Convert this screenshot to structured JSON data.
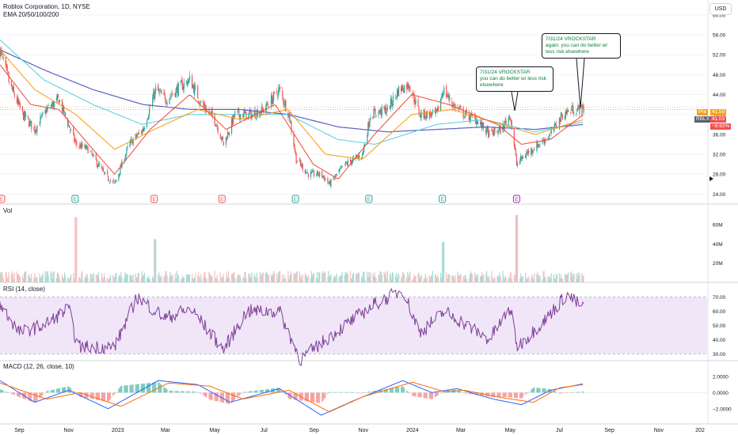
{
  "header": {
    "symbol_line": "Roblox Corporation, 1D, NYSE",
    "indicator_line": "EMA 20/50/100/200",
    "currency": "USD"
  },
  "panes": {
    "volume_label": "Vol",
    "rsi_label": "RSI (14, close)",
    "macd_label": "MACD (12, 26, close, 10)"
  },
  "notes": [
    {
      "lines": [
        "7/31/24 VROCKSTAR",
        "you can do better w/ less risk",
        "elsewhere"
      ]
    },
    {
      "lines": [
        "7/31/24 VROCKSTAR",
        "again: you can do better w/",
        "less risk elsewhere"
      ]
    }
  ],
  "price_tags": {
    "pre_label": "Pre",
    "pre_value": "41.50",
    "ticker": "RBLX",
    "last_value": "41.03",
    "change": "−8.62%"
  },
  "colors": {
    "up": "#26a69a",
    "down": "#ef5350",
    "ema20": "#f44336",
    "ema50": "#ff9800",
    "ema100": "#4dd0e1",
    "ema200": "#5b5fc7",
    "rsi": "#7e3f98",
    "rsi_band": "#eadcf5",
    "macd": "#2962ff",
    "signal": "#ff6d00",
    "note_text": "#0a7f3f"
  },
  "chart_data": {
    "type": "candlestick",
    "symbol": "Roblox Corporation",
    "interval": "1D",
    "exchange": "NYSE",
    "x_tick_labels": [
      "Sep",
      "Nov",
      "2023",
      "Mar",
      "May",
      "Jul",
      "Sep",
      "Nov",
      "2024",
      "Mar",
      "May",
      "Jul",
      "Sep",
      "Nov",
      "202"
    ],
    "x_range": [
      "2022-08-08",
      "2024-12-31"
    ],
    "price_axis": {
      "ticks": [
        24,
        28,
        32,
        36,
        40,
        44,
        48,
        52,
        56,
        60
      ],
      "range": [
        22,
        63
      ]
    },
    "price_path": [
      [
        "2022-08-08",
        53
      ],
      [
        "2022-08-20",
        46
      ],
      [
        "2022-09-05",
        40
      ],
      [
        "2022-09-20",
        37
      ],
      [
        "2022-10-05",
        41
      ],
      [
        "2022-10-20",
        43
      ],
      [
        "2022-11-10",
        34
      ],
      [
        "2022-11-25",
        33
      ],
      [
        "2022-12-15",
        28
      ],
      [
        "2022-12-28",
        26
      ],
      [
        "2023-01-15",
        34
      ],
      [
        "2023-02-01",
        37
      ],
      [
        "2023-02-17",
        45
      ],
      [
        "2023-03-01",
        43
      ],
      [
        "2023-03-15",
        45
      ],
      [
        "2023-03-31",
        47
      ],
      [
        "2023-04-15",
        42
      ],
      [
        "2023-05-01",
        39
      ],
      [
        "2023-05-12",
        34
      ],
      [
        "2023-05-26",
        40
      ],
      [
        "2023-06-15",
        40
      ],
      [
        "2023-07-01",
        41
      ],
      [
        "2023-07-20",
        45
      ],
      [
        "2023-08-01",
        40
      ],
      [
        "2023-08-10",
        31
      ],
      [
        "2023-08-25",
        28
      ],
      [
        "2023-09-10",
        28
      ],
      [
        "2023-09-20",
        26
      ],
      [
        "2023-10-10",
        30
      ],
      [
        "2023-10-31",
        32
      ],
      [
        "2023-11-10",
        40
      ],
      [
        "2023-12-01",
        41
      ],
      [
        "2023-12-15",
        45
      ],
      [
        "2023-12-28",
        46
      ],
      [
        "2024-01-10",
        40
      ],
      [
        "2024-01-31",
        40
      ],
      [
        "2024-02-08",
        45
      ],
      [
        "2024-02-20",
        42
      ],
      [
        "2024-03-05",
        40
      ],
      [
        "2024-03-20",
        39
      ],
      [
        "2024-04-05",
        36
      ],
      [
        "2024-04-20",
        37
      ],
      [
        "2024-05-01",
        40
      ],
      [
        "2024-05-09",
        30
      ],
      [
        "2024-05-20",
        32
      ],
      [
        "2024-06-05",
        34
      ],
      [
        "2024-06-20",
        36
      ],
      [
        "2024-07-05",
        40
      ],
      [
        "2024-07-17",
        41
      ],
      [
        "2024-07-31",
        41.03
      ]
    ],
    "ema_paths": {
      "ema20": [
        [
          "2022-08-08",
          50
        ],
        [
          "2022-09-15",
          42
        ],
        [
          "2022-10-20",
          41
        ],
        [
          "2022-12-01",
          33
        ],
        [
          "2022-12-28",
          28
        ],
        [
          "2023-02-10",
          37
        ],
        [
          "2023-03-31",
          44
        ],
        [
          "2023-05-15",
          37
        ],
        [
          "2023-07-15",
          42
        ],
        [
          "2023-08-31",
          30
        ],
        [
          "2023-10-01",
          27
        ],
        [
          "2023-11-15",
          36
        ],
        [
          "2023-12-31",
          44
        ],
        [
          "2024-02-15",
          42
        ],
        [
          "2024-04-15",
          38
        ],
        [
          "2024-05-15",
          34
        ],
        [
          "2024-06-20",
          35
        ],
        [
          "2024-07-31",
          40
        ]
      ],
      "ema50": [
        [
          "2022-08-08",
          53
        ],
        [
          "2022-09-20",
          45
        ],
        [
          "2022-11-10",
          40
        ],
        [
          "2022-12-28",
          33
        ],
        [
          "2023-02-15",
          37
        ],
        [
          "2023-04-10",
          41
        ],
        [
          "2023-06-01",
          39
        ],
        [
          "2023-07-31",
          41
        ],
        [
          "2023-09-15",
          32
        ],
        [
          "2023-10-31",
          31
        ],
        [
          "2023-12-31",
          40
        ],
        [
          "2024-02-20",
          41
        ],
        [
          "2024-04-20",
          38
        ],
        [
          "2024-06-01",
          36
        ],
        [
          "2024-07-31",
          39
        ]
      ],
      "ema100": [
        [
          "2022-08-08",
          55
        ],
        [
          "2022-10-01",
          47
        ],
        [
          "2022-12-01",
          42
        ],
        [
          "2023-01-31",
          38
        ],
        [
          "2023-03-31",
          40
        ],
        [
          "2023-05-31",
          40
        ],
        [
          "2023-07-31",
          40
        ],
        [
          "2023-09-30",
          35
        ],
        [
          "2023-11-15",
          34
        ],
        [
          "2024-01-31",
          38
        ],
        [
          "2024-03-31",
          39
        ],
        [
          "2024-05-31",
          36.5
        ],
        [
          "2024-07-31",
          38.5
        ]
      ],
      "ema200": [
        [
          "2022-08-08",
          53
        ],
        [
          "2022-10-01",
          49
        ],
        [
          "2022-12-01",
          45
        ],
        [
          "2023-02-01",
          42
        ],
        [
          "2023-04-01",
          41
        ],
        [
          "2023-06-01",
          41
        ],
        [
          "2023-08-01",
          40
        ],
        [
          "2023-10-01",
          37.5
        ],
        [
          "2023-12-01",
          36.5
        ],
        [
          "2024-02-01",
          37
        ],
        [
          "2024-04-01",
          37.5
        ],
        [
          "2024-06-01",
          37
        ],
        [
          "2024-07-31",
          38
        ]
      ]
    },
    "pre_market_price": 41.5,
    "last_price": 41.03,
    "change_percent": -8.62,
    "earnings_markers": [
      {
        "date": "2022-08-10",
        "label": "E",
        "type": "miss"
      },
      {
        "date": "2022-11-09",
        "label": "E",
        "type": "beat"
      },
      {
        "date": "2023-02-15",
        "label": "E",
        "type": "miss"
      },
      {
        "date": "2023-05-10",
        "label": "E",
        "type": "miss"
      },
      {
        "date": "2023-08-09",
        "label": "E",
        "type": "beat"
      },
      {
        "date": "2023-11-08",
        "label": "E",
        "type": "beat"
      },
      {
        "date": "2024-02-07",
        "label": "E",
        "type": "beat"
      },
      {
        "date": "2024-05-09",
        "label": "E",
        "type": "upcoming"
      }
    ],
    "volume_axis": {
      "ticks": [
        "20M",
        "40M",
        "60M"
      ],
      "range_millions": [
        0,
        70
      ]
    },
    "volume_spikes": [
      {
        "date": "2022-11-10",
        "millions": 68
      },
      {
        "date": "2023-02-16",
        "millions": 45
      },
      {
        "date": "2024-02-08",
        "millions": 42
      },
      {
        "date": "2024-05-09",
        "millions": 70
      }
    ],
    "rsi": {
      "axis_ticks": [
        30,
        40,
        50,
        60,
        70
      ],
      "band": [
        30,
        70
      ],
      "path": [
        [
          "2022-08-08",
          65
        ],
        [
          "2022-09-01",
          45
        ],
        [
          "2022-10-01",
          50
        ],
        [
          "2022-11-01",
          62
        ],
        [
          "2022-11-12",
          35
        ],
        [
          "2022-12-28",
          35
        ],
        [
          "2023-01-25",
          70
        ],
        [
          "2023-03-01",
          55
        ],
        [
          "2023-04-01",
          62
        ],
        [
          "2023-05-12",
          33
        ],
        [
          "2023-06-10",
          60
        ],
        [
          "2023-07-20",
          60
        ],
        [
          "2023-08-15",
          26
        ],
        [
          "2023-09-20",
          42
        ],
        [
          "2023-11-15",
          65
        ],
        [
          "2023-12-20",
          75
        ],
        [
          "2024-01-10",
          45
        ],
        [
          "2024-02-10",
          60
        ],
        [
          "2024-04-05",
          40
        ],
        [
          "2024-05-01",
          62
        ],
        [
          "2024-05-10",
          35
        ],
        [
          "2024-06-15",
          55
        ],
        [
          "2024-07-10",
          72
        ],
        [
          "2024-07-31",
          62
        ]
      ]
    },
    "macd": {
      "axis_ticks": [
        2.0,
        0.0,
        -2.0
      ],
      "tick_labels": [
        "2.0000",
        "0.0000",
        "−2.0000"
      ],
      "macd_path": [
        [
          "2022-08-08",
          1.5
        ],
        [
          "2022-09-20",
          -1.2
        ],
        [
          "2022-11-01",
          0.3
        ],
        [
          "2022-12-20",
          -2.0
        ],
        [
          "2023-02-20",
          1.5
        ],
        [
          "2023-04-10",
          1.0
        ],
        [
          "2023-05-20",
          -1.2
        ],
        [
          "2023-07-20",
          0.5
        ],
        [
          "2023-09-10",
          -2.8
        ],
        [
          "2023-10-20",
          -1.0
        ],
        [
          "2023-12-20",
          1.5
        ],
        [
          "2024-01-25",
          0.0
        ],
        [
          "2024-02-25",
          0.5
        ],
        [
          "2024-04-10",
          -0.8
        ],
        [
          "2024-05-15",
          -1.5
        ],
        [
          "2024-06-20",
          0.3
        ],
        [
          "2024-07-31",
          1.1
        ]
      ],
      "signal_path": [
        [
          "2022-08-08",
          1.2
        ],
        [
          "2022-10-05",
          -0.8
        ],
        [
          "2022-11-15",
          0.0
        ],
        [
          "2023-01-05",
          -1.7
        ],
        [
          "2023-03-05",
          1.2
        ],
        [
          "2023-04-25",
          0.8
        ],
        [
          "2023-06-05",
          -0.8
        ],
        [
          "2023-08-01",
          0.3
        ],
        [
          "2023-09-20",
          -2.4
        ],
        [
          "2023-11-01",
          -0.5
        ],
        [
          "2024-01-01",
          1.3
        ],
        [
          "2024-02-10",
          0.1
        ],
        [
          "2024-03-05",
          0.3
        ],
        [
          "2024-04-25",
          -0.7
        ],
        [
          "2024-05-30",
          -1.2
        ],
        [
          "2024-07-01",
          0.6
        ],
        [
          "2024-07-31",
          1.0
        ]
      ]
    }
  }
}
